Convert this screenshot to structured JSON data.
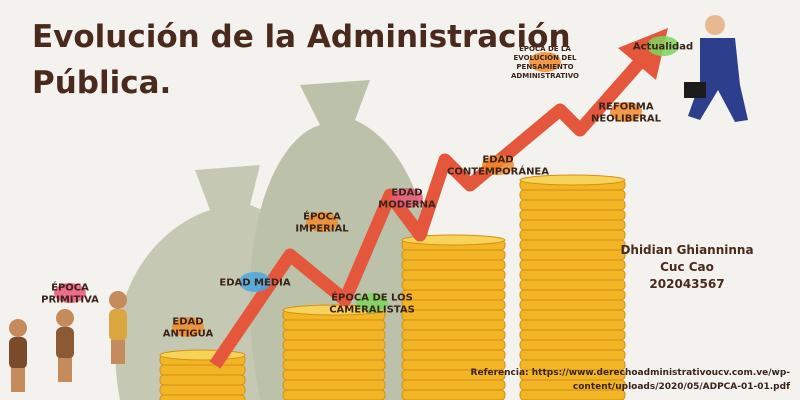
{
  "title": {
    "lines": [
      "Evolución de la Administración",
      "Pública."
    ]
  },
  "stages": [
    {
      "lines": [
        "ÉPOCA",
        "PRIMITIVA"
      ]
    },
    {
      "lines": [
        "EDAD",
        "ANTIGUA"
      ]
    },
    {
      "lines": [
        "EDAD MEDIA"
      ]
    },
    {
      "lines": [
        "ÉPOCA",
        "IMPERIAL"
      ]
    },
    {
      "lines": [
        "ÉPOCA DE LOS",
        "CAMERALISTAS"
      ]
    },
    {
      "lines": [
        "EDAD",
        "MODERNA"
      ]
    },
    {
      "lines": [
        "EDAD",
        "CONTEMPORÁNEA"
      ]
    },
    {
      "lines": [
        "ÉPOCA DE LA",
        "EVOLUCIÓN DEL",
        "PENSAMIENTO",
        "ADMINISTRATIVO"
      ]
    },
    {
      "lines": [
        "REFORMA",
        "NEOLIBERAL"
      ]
    },
    {
      "lines": [
        "Actualidad"
      ]
    }
  ],
  "author": {
    "lines": [
      "Dhidian Ghianninna",
      "Cuc Cao",
      "202043567"
    ]
  },
  "reference": "Referencia: https://www.derechoadministrativoucv.com.ve/wp-content/uploads/2020/05/ADPCA-01-01.pdf"
}
